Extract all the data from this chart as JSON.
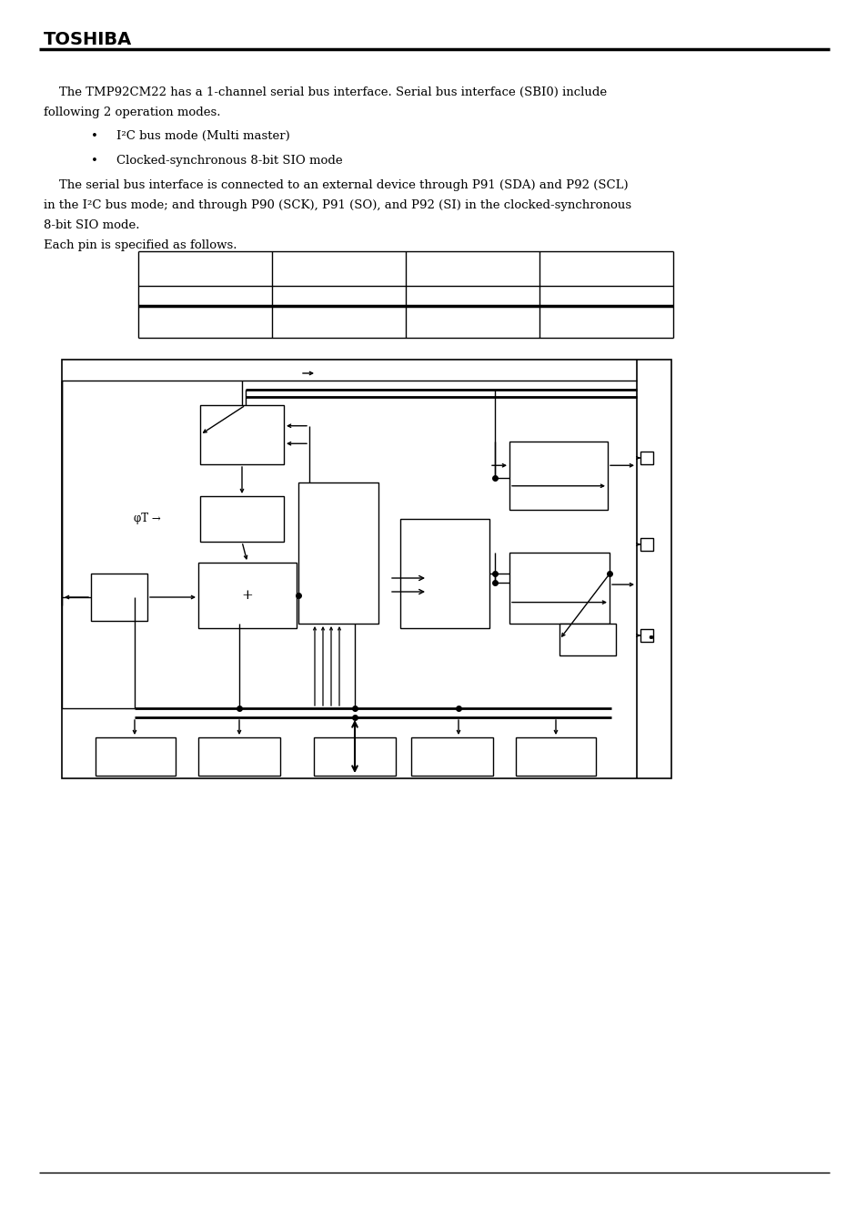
{
  "bg_color": "#ffffff",
  "header": "TOSHIBA",
  "line1": "    The TMP92CM22 has a 1-channel serial bus interface. Serial bus interface (SBI0) include",
  "line2": "following 2 operation modes.",
  "bullet1": "I²C bus mode (Multi master)",
  "bullet2": "Clocked-synchronous 8-bit SIO mode",
  "line3": "    The serial bus interface is connected to an external device through P91 (SDA) and P92 (SCL)",
  "line4": "in the I²C bus mode; and through P90 (SCK), P91 (SO), and P92 (SI) in the clocked-synchronous",
  "line5": "8-bit SIO mode.",
  "line6": "Each pin is specified as follows.",
  "phi_label": "φT →"
}
